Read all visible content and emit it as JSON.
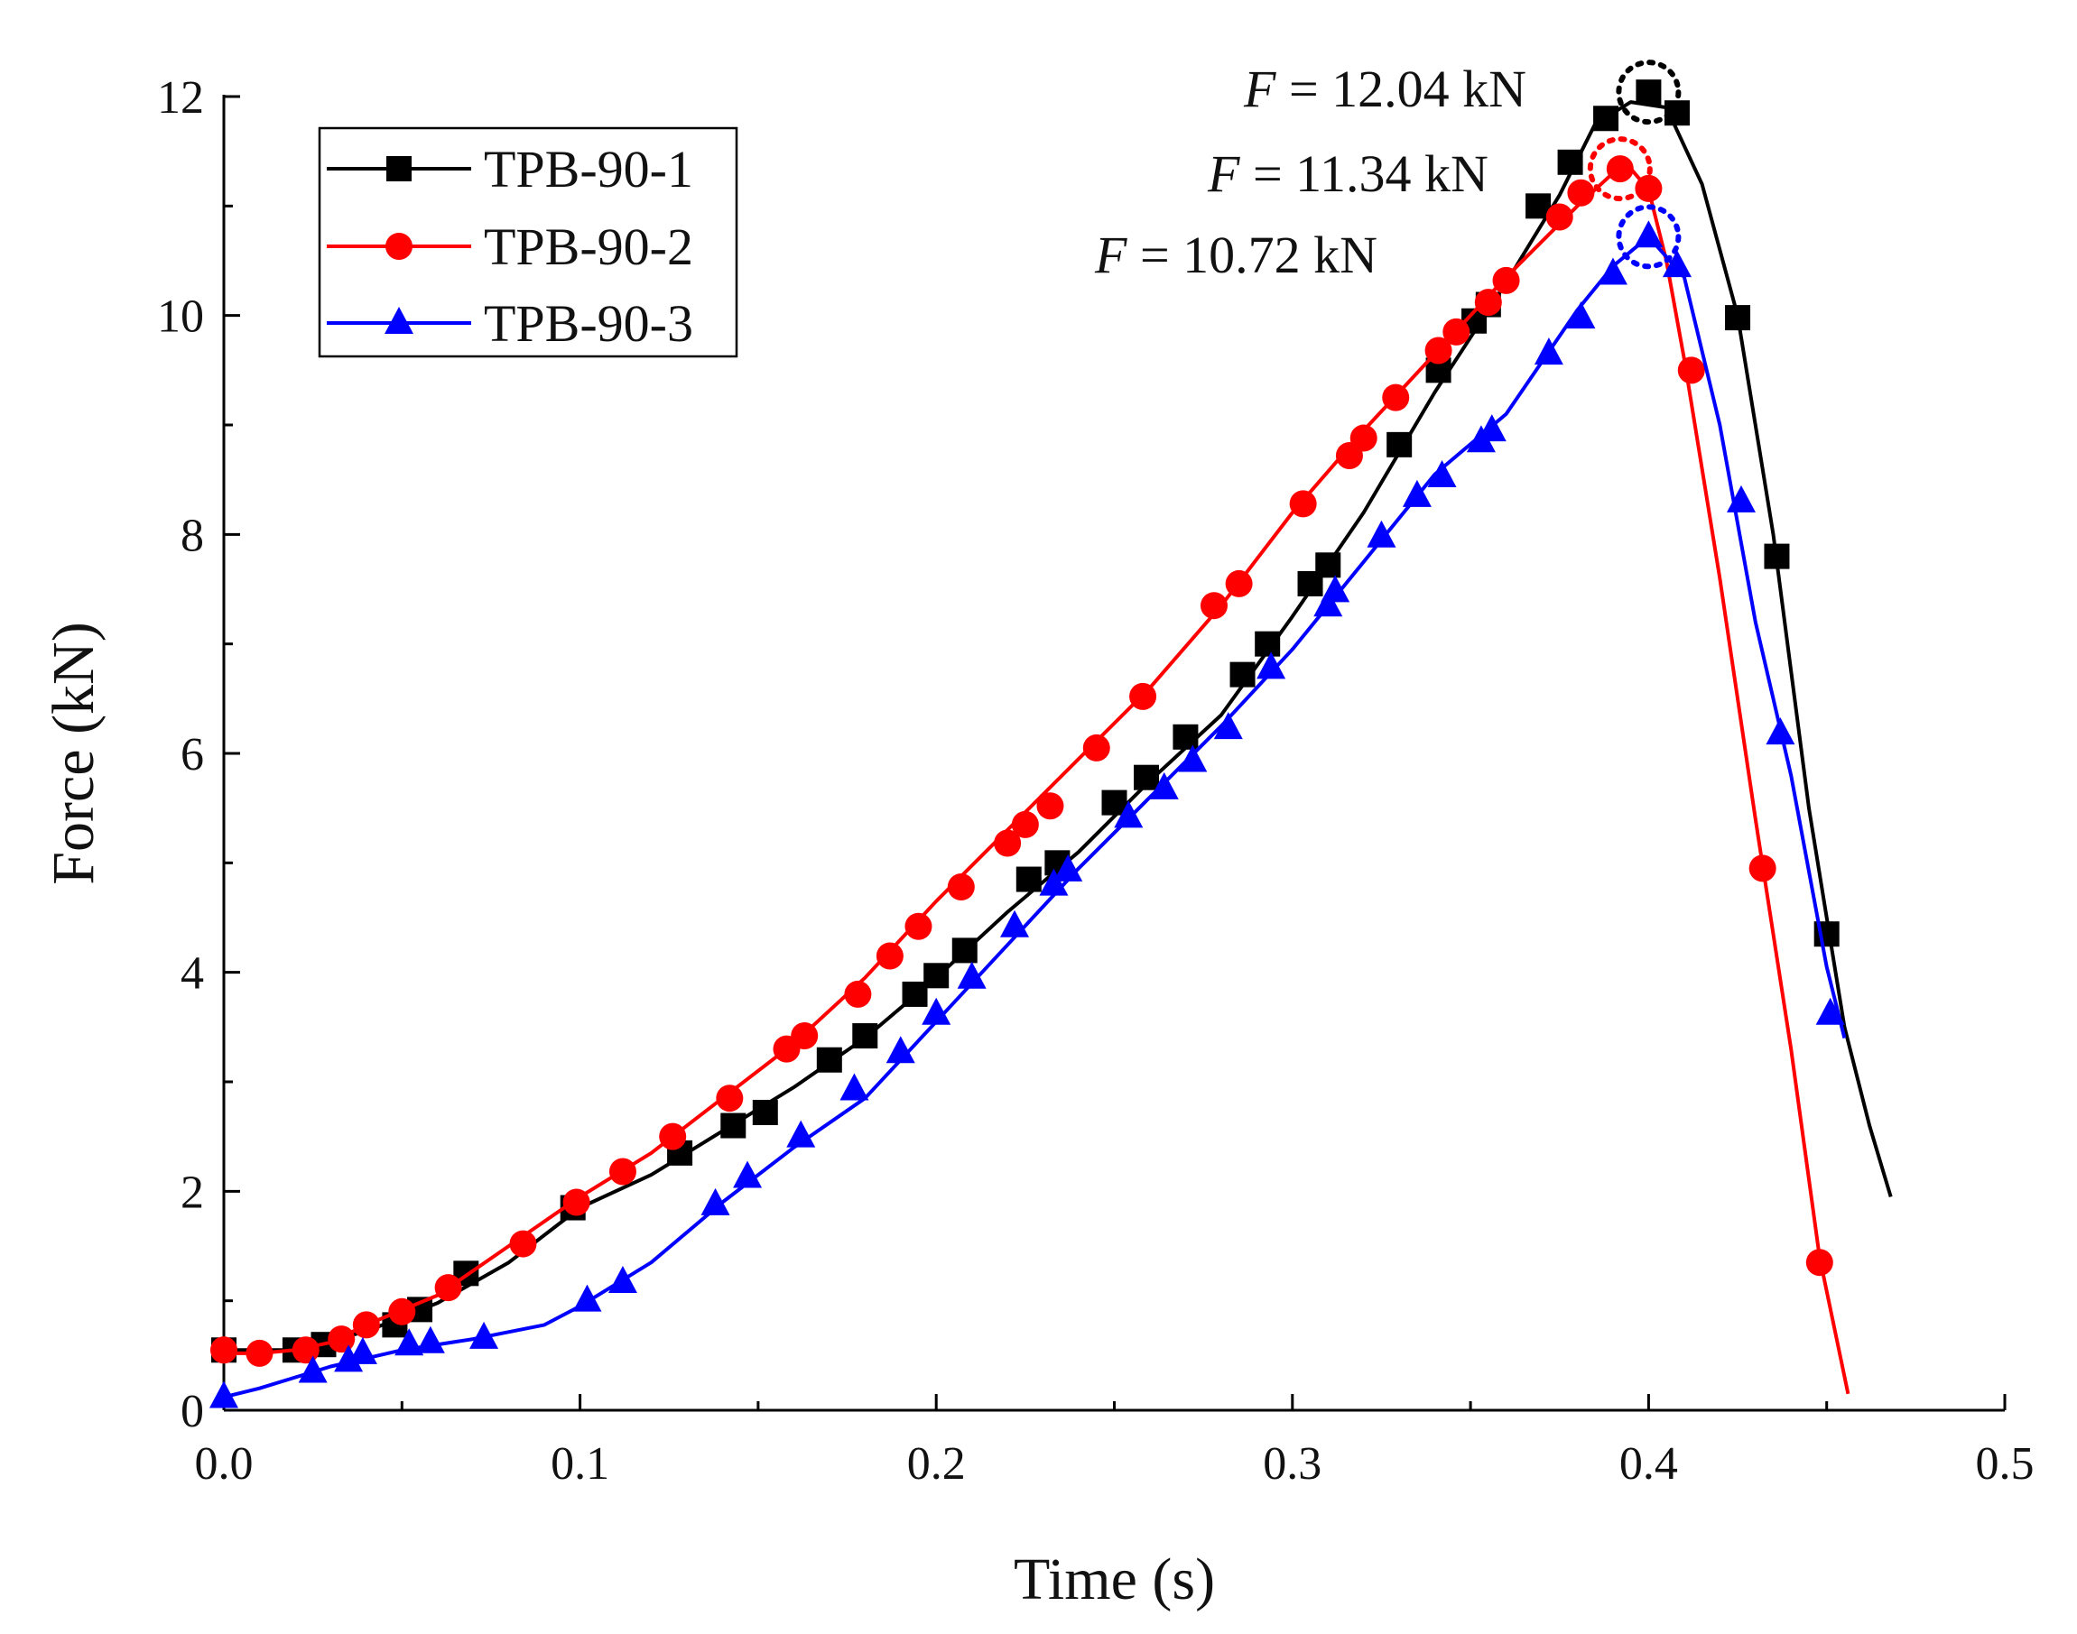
{
  "chart_data": {
    "type": "line",
    "title": "",
    "xlabel": "Time (s)",
    "ylabel": "Force (kN)",
    "xlim": [
      0,
      0.5
    ],
    "ylim": [
      0,
      12
    ],
    "grid": false,
    "legend_position": "top-left",
    "x_ticks": [
      "0.0",
      "0.1",
      "0.2",
      "0.3",
      "0.4",
      "0.5"
    ],
    "y_ticks": [
      "0",
      "2",
      "4",
      "6",
      "8",
      "10",
      "12"
    ],
    "series": [
      {
        "name": "TPB-90-1",
        "color": "#000000",
        "marker": "square",
        "line": [
          [
            0.0,
            0.55
          ],
          [
            0.02,
            0.55
          ],
          [
            0.04,
            0.72
          ],
          [
            0.06,
            0.98
          ],
          [
            0.08,
            1.35
          ],
          [
            0.1,
            1.85
          ],
          [
            0.12,
            2.15
          ],
          [
            0.14,
            2.55
          ],
          [
            0.16,
            2.95
          ],
          [
            0.18,
            3.4
          ],
          [
            0.2,
            3.95
          ],
          [
            0.22,
            4.55
          ],
          [
            0.24,
            5.1
          ],
          [
            0.26,
            5.75
          ],
          [
            0.28,
            6.35
          ],
          [
            0.3,
            7.25
          ],
          [
            0.32,
            8.2
          ],
          [
            0.34,
            9.3
          ],
          [
            0.36,
            10.3
          ],
          [
            0.375,
            11.1
          ],
          [
            0.385,
            11.75
          ],
          [
            0.395,
            11.95
          ],
          [
            0.405,
            11.9
          ],
          [
            0.415,
            11.2
          ],
          [
            0.425,
            10.0
          ],
          [
            0.435,
            8.0
          ],
          [
            0.445,
            5.5
          ],
          [
            0.455,
            3.5
          ],
          [
            0.462,
            2.6
          ],
          [
            0.468,
            1.95
          ]
        ],
        "points": [
          [
            0.0,
            0.55
          ],
          [
            0.02,
            0.55
          ],
          [
            0.028,
            0.6
          ],
          [
            0.048,
            0.78
          ],
          [
            0.055,
            0.92
          ],
          [
            0.068,
            1.25
          ],
          [
            0.098,
            1.85
          ],
          [
            0.128,
            2.35
          ],
          [
            0.143,
            2.6
          ],
          [
            0.152,
            2.72
          ],
          [
            0.17,
            3.2
          ],
          [
            0.18,
            3.42
          ],
          [
            0.194,
            3.8
          ],
          [
            0.2,
            3.97
          ],
          [
            0.208,
            4.2
          ],
          [
            0.226,
            4.85
          ],
          [
            0.234,
            5.0
          ],
          [
            0.25,
            5.55
          ],
          [
            0.259,
            5.78
          ],
          [
            0.27,
            6.15
          ],
          [
            0.286,
            6.72
          ],
          [
            0.293,
            7.0
          ],
          [
            0.305,
            7.55
          ],
          [
            0.31,
            7.72
          ],
          [
            0.33,
            8.82
          ],
          [
            0.341,
            9.5
          ],
          [
            0.351,
            9.95
          ],
          [
            0.355,
            10.1
          ],
          [
            0.369,
            11.0
          ],
          [
            0.378,
            11.4
          ],
          [
            0.388,
            11.8
          ],
          [
            0.4,
            12.04
          ],
          [
            0.408,
            11.85
          ],
          [
            0.425,
            9.98
          ],
          [
            0.436,
            7.8
          ],
          [
            0.45,
            4.35
          ]
        ]
      },
      {
        "name": "TPB-90-2",
        "color": "#ff0000",
        "marker": "circle",
        "line": [
          [
            0.0,
            0.52
          ],
          [
            0.01,
            0.52
          ],
          [
            0.02,
            0.55
          ],
          [
            0.03,
            0.62
          ],
          [
            0.04,
            0.78
          ],
          [
            0.06,
            1.05
          ],
          [
            0.08,
            1.5
          ],
          [
            0.1,
            1.95
          ],
          [
            0.12,
            2.35
          ],
          [
            0.14,
            2.85
          ],
          [
            0.16,
            3.35
          ],
          [
            0.18,
            3.95
          ],
          [
            0.2,
            4.65
          ],
          [
            0.22,
            5.3
          ],
          [
            0.24,
            5.95
          ],
          [
            0.26,
            6.6
          ],
          [
            0.28,
            7.35
          ],
          [
            0.3,
            8.2
          ],
          [
            0.32,
            8.95
          ],
          [
            0.34,
            9.65
          ],
          [
            0.36,
            10.35
          ],
          [
            0.38,
            11.0
          ],
          [
            0.39,
            11.3
          ],
          [
            0.395,
            11.34
          ],
          [
            0.4,
            11.15
          ],
          [
            0.405,
            10.5
          ],
          [
            0.41,
            9.6
          ],
          [
            0.42,
            7.6
          ],
          [
            0.43,
            5.4
          ],
          [
            0.44,
            3.3
          ],
          [
            0.448,
            1.4
          ],
          [
            0.456,
            0.15
          ]
        ],
        "points": [
          [
            0.0,
            0.55
          ],
          [
            0.01,
            0.52
          ],
          [
            0.023,
            0.55
          ],
          [
            0.033,
            0.65
          ],
          [
            0.04,
            0.78
          ],
          [
            0.05,
            0.9
          ],
          [
            0.063,
            1.12
          ],
          [
            0.084,
            1.52
          ],
          [
            0.099,
            1.9
          ],
          [
            0.112,
            2.18
          ],
          [
            0.126,
            2.5
          ],
          [
            0.142,
            2.85
          ],
          [
            0.158,
            3.3
          ],
          [
            0.163,
            3.42
          ],
          [
            0.178,
            3.8
          ],
          [
            0.187,
            4.15
          ],
          [
            0.195,
            4.42
          ],
          [
            0.207,
            4.78
          ],
          [
            0.22,
            5.18
          ],
          [
            0.225,
            5.35
          ],
          [
            0.232,
            5.52
          ],
          [
            0.245,
            6.05
          ],
          [
            0.258,
            6.52
          ],
          [
            0.278,
            7.35
          ],
          [
            0.285,
            7.55
          ],
          [
            0.303,
            8.28
          ],
          [
            0.316,
            8.72
          ],
          [
            0.32,
            8.88
          ],
          [
            0.329,
            9.25
          ],
          [
            0.341,
            9.68
          ],
          [
            0.346,
            9.85
          ],
          [
            0.355,
            10.12
          ],
          [
            0.36,
            10.32
          ],
          [
            0.375,
            10.9
          ],
          [
            0.381,
            11.12
          ],
          [
            0.392,
            11.34
          ],
          [
            0.4,
            11.16
          ],
          [
            0.412,
            9.5
          ],
          [
            0.432,
            4.95
          ],
          [
            0.448,
            1.35
          ]
        ]
      },
      {
        "name": "TPB-90-3",
        "color": "#0000ff",
        "marker": "triangle",
        "line": [
          [
            0.0,
            0.12
          ],
          [
            0.01,
            0.2
          ],
          [
            0.02,
            0.3
          ],
          [
            0.03,
            0.4
          ],
          [
            0.05,
            0.55
          ],
          [
            0.07,
            0.65
          ],
          [
            0.09,
            0.78
          ],
          [
            0.1,
            0.95
          ],
          [
            0.12,
            1.35
          ],
          [
            0.14,
            1.9
          ],
          [
            0.16,
            2.4
          ],
          [
            0.18,
            2.85
          ],
          [
            0.2,
            3.55
          ],
          [
            0.22,
            4.25
          ],
          [
            0.24,
            4.95
          ],
          [
            0.26,
            5.6
          ],
          [
            0.28,
            6.25
          ],
          [
            0.3,
            6.95
          ],
          [
            0.32,
            7.75
          ],
          [
            0.34,
            8.55
          ],
          [
            0.36,
            9.1
          ],
          [
            0.38,
            10.05
          ],
          [
            0.39,
            10.45
          ],
          [
            0.4,
            10.72
          ],
          [
            0.41,
            10.35
          ],
          [
            0.42,
            9.0
          ],
          [
            0.43,
            7.2
          ],
          [
            0.44,
            5.8
          ],
          [
            0.45,
            4.05
          ],
          [
            0.455,
            3.4
          ]
        ],
        "points": [
          [
            0.0,
            0.12
          ],
          [
            0.025,
            0.35
          ],
          [
            0.035,
            0.45
          ],
          [
            0.039,
            0.52
          ],
          [
            0.052,
            0.6
          ],
          [
            0.058,
            0.62
          ],
          [
            0.073,
            0.66
          ],
          [
            0.102,
            1.0
          ],
          [
            0.112,
            1.17
          ],
          [
            0.138,
            1.88
          ],
          [
            0.147,
            2.13
          ],
          [
            0.162,
            2.5
          ],
          [
            0.177,
            2.93
          ],
          [
            0.19,
            3.27
          ],
          [
            0.2,
            3.62
          ],
          [
            0.21,
            3.95
          ],
          [
            0.222,
            4.42
          ],
          [
            0.233,
            4.8
          ],
          [
            0.237,
            4.93
          ],
          [
            0.254,
            5.42
          ],
          [
            0.264,
            5.68
          ],
          [
            0.272,
            5.93
          ],
          [
            0.282,
            6.23
          ],
          [
            0.294,
            6.78
          ],
          [
            0.31,
            7.35
          ],
          [
            0.312,
            7.48
          ],
          [
            0.325,
            7.98
          ],
          [
            0.335,
            8.35
          ],
          [
            0.342,
            8.53
          ],
          [
            0.353,
            8.85
          ],
          [
            0.356,
            8.95
          ],
          [
            0.372,
            9.65
          ],
          [
            0.381,
            9.98
          ],
          [
            0.39,
            10.38
          ],
          [
            0.4,
            10.72
          ],
          [
            0.408,
            10.45
          ],
          [
            0.426,
            8.3
          ],
          [
            0.437,
            6.18
          ],
          [
            0.451,
            3.62
          ]
        ]
      }
    ],
    "annotations": [
      {
        "prefix": "F",
        "text": " = 12.04 kN",
        "series": "TPB-90-1",
        "x": 0.4,
        "y": 12.04
      },
      {
        "prefix": "F",
        "text": " = 11.34 kN",
        "series": "TPB-90-2",
        "x": 0.392,
        "y": 11.34
      },
      {
        "prefix": "F",
        "text": " = 10.72 kN",
        "series": "TPB-90-3",
        "x": 0.4,
        "y": 10.72
      }
    ]
  }
}
